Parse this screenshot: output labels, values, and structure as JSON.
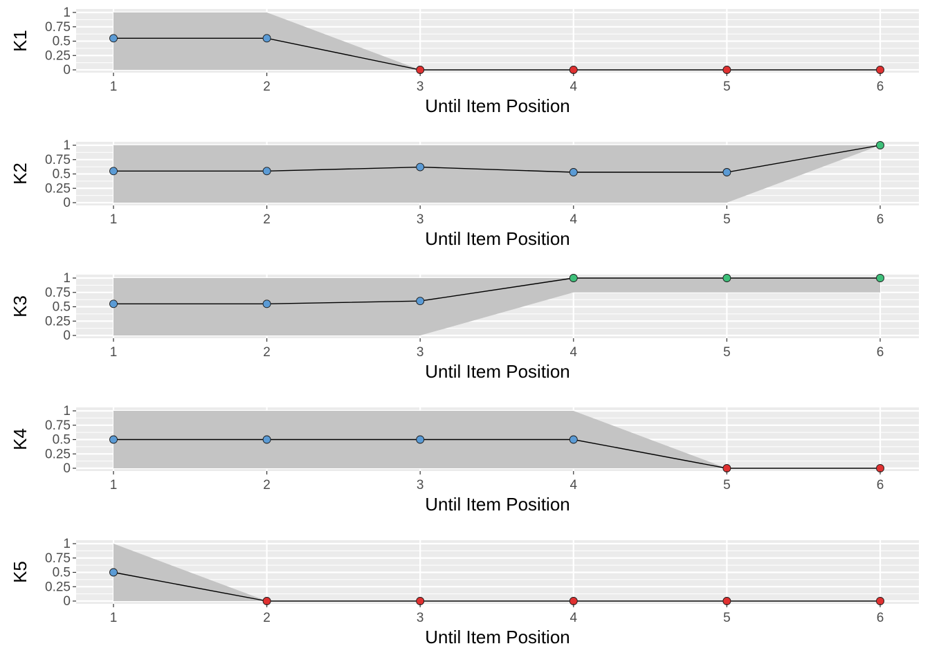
{
  "chart_data": [
    {
      "type": "line",
      "ylabel": "K1",
      "xlabel": "Until Item Position",
      "x": [
        1,
        2,
        3,
        4,
        5,
        6
      ],
      "x_ticks": [
        "1",
        "2",
        "3",
        "4",
        "5",
        "6"
      ],
      "y_ticks": [
        "0",
        "0.25",
        "0.5",
        "0.75",
        "1"
      ],
      "ylim": [
        0,
        1
      ],
      "values": [
        0.55,
        0.55,
        0,
        0,
        0,
        0
      ],
      "ribbon_lower": [
        0,
        0,
        0,
        0,
        0,
        0
      ],
      "ribbon_upper": [
        1,
        1,
        0,
        0,
        0,
        0
      ],
      "point_colors": [
        "#5b9bd5",
        "#5b9bd5",
        "#e03131",
        "#e03131",
        "#e03131",
        "#e03131"
      ]
    },
    {
      "type": "line",
      "ylabel": "K2",
      "xlabel": "Until Item Position",
      "x": [
        1,
        2,
        3,
        4,
        5,
        6
      ],
      "x_ticks": [
        "1",
        "2",
        "3",
        "4",
        "5",
        "6"
      ],
      "y_ticks": [
        "0",
        "0.25",
        "0.5",
        "0.75",
        "1"
      ],
      "ylim": [
        0,
        1
      ],
      "values": [
        0.55,
        0.55,
        0.62,
        0.53,
        0.53,
        1
      ],
      "ribbon_lower": [
        0,
        0,
        0,
        0,
        0,
        1
      ],
      "ribbon_upper": [
        1,
        1,
        1,
        1,
        1,
        1
      ],
      "point_colors": [
        "#5b9bd5",
        "#5b9bd5",
        "#5b9bd5",
        "#5b9bd5",
        "#5b9bd5",
        "#3ec07a"
      ]
    },
    {
      "type": "line",
      "ylabel": "K3",
      "xlabel": "Until Item Position",
      "x": [
        1,
        2,
        3,
        4,
        5,
        6
      ],
      "x_ticks": [
        "1",
        "2",
        "3",
        "4",
        "5",
        "6"
      ],
      "y_ticks": [
        "0",
        "0.25",
        "0.5",
        "0.75",
        "1"
      ],
      "ylim": [
        0,
        1
      ],
      "values": [
        0.55,
        0.55,
        0.6,
        1,
        1,
        1
      ],
      "ribbon_lower": [
        0,
        0,
        0,
        0.75,
        0.75,
        0.75
      ],
      "ribbon_upper": [
        1,
        1,
        1,
        1,
        1,
        1
      ],
      "point_colors": [
        "#5b9bd5",
        "#5b9bd5",
        "#5b9bd5",
        "#3ec07a",
        "#3ec07a",
        "#3ec07a"
      ]
    },
    {
      "type": "line",
      "ylabel": "K4",
      "xlabel": "Until Item Position",
      "x": [
        1,
        2,
        3,
        4,
        5,
        6
      ],
      "x_ticks": [
        "1",
        "2",
        "3",
        "4",
        "5",
        "6"
      ],
      "y_ticks": [
        "0",
        "0.25",
        "0.5",
        "0.75",
        "1"
      ],
      "ylim": [
        0,
        1
      ],
      "values": [
        0.5,
        0.5,
        0.5,
        0.5,
        0,
        0
      ],
      "ribbon_lower": [
        0,
        0,
        0,
        0,
        0,
        0
      ],
      "ribbon_upper": [
        1,
        1,
        1,
        1,
        0,
        0
      ],
      "point_colors": [
        "#5b9bd5",
        "#5b9bd5",
        "#5b9bd5",
        "#5b9bd5",
        "#e03131",
        "#e03131"
      ]
    },
    {
      "type": "line",
      "ylabel": "K5",
      "xlabel": "Until Item Position",
      "x": [
        1,
        2,
        3,
        4,
        5,
        6
      ],
      "x_ticks": [
        "1",
        "2",
        "3",
        "4",
        "5",
        "6"
      ],
      "y_ticks": [
        "0",
        "0.25",
        "0.5",
        "0.75",
        "1"
      ],
      "ylim": [
        0,
        1
      ],
      "values": [
        0.5,
        0,
        0,
        0,
        0,
        0
      ],
      "ribbon_lower": [
        0,
        0,
        0,
        0,
        0,
        0
      ],
      "ribbon_upper": [
        1,
        0,
        0,
        0,
        0,
        0
      ],
      "point_colors": [
        "#5b9bd5",
        "#e03131",
        "#e03131",
        "#e03131",
        "#e03131",
        "#e03131"
      ]
    }
  ],
  "colors": {
    "panel_background": "#ebebeb",
    "grid": "#ffffff",
    "ribbon": "#c4c4c4",
    "line": "#000000"
  }
}
